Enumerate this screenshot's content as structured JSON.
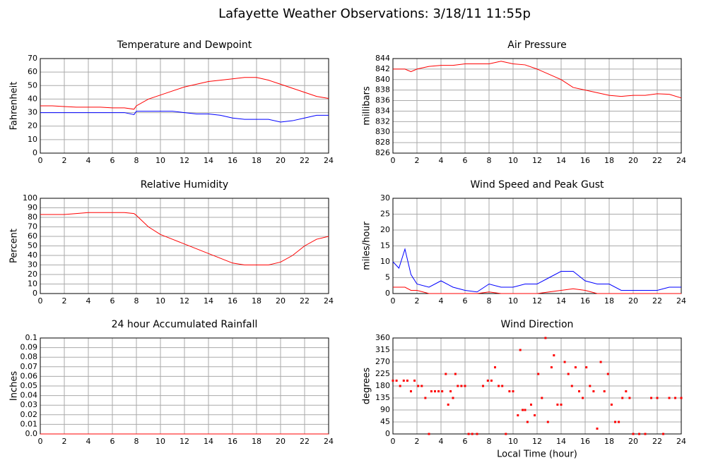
{
  "title": "Lafayette Weather Observations: 3/18/11 11:55p",
  "chart_data": [
    {
      "type": "line",
      "title": "Temperature and Dewpoint",
      "ylabel": "Fahrenheit",
      "x": [
        0,
        1,
        2,
        3,
        4,
        5,
        6,
        7,
        7.8,
        8,
        9,
        10,
        11,
        12,
        13,
        14,
        15,
        16,
        17,
        18,
        19,
        20,
        21,
        22,
        23,
        24
      ],
      "series": [
        {
          "color": "#ff0000",
          "values": [
            35,
            35,
            34.5,
            34,
            34,
            34,
            33.5,
            33.5,
            32.5,
            35,
            40,
            43,
            46,
            49,
            51,
            53,
            54,
            55,
            56,
            56,
            54,
            51,
            48,
            45,
            42,
            40.5
          ]
        },
        {
          "color": "#0000ff",
          "values": [
            30,
            30,
            30,
            30,
            30,
            30,
            30,
            30,
            28.5,
            31,
            31,
            31,
            31,
            30,
            29,
            29,
            28,
            26,
            25,
            25,
            25,
            23,
            24,
            26,
            28,
            28
          ]
        }
      ],
      "xlim": [
        0,
        24
      ],
      "xticks": [
        0,
        2,
        4,
        6,
        8,
        10,
        12,
        14,
        16,
        18,
        20,
        22,
        24
      ],
      "ylim": [
        0,
        70
      ],
      "yticks": [
        0,
        10,
        20,
        30,
        40,
        50,
        60,
        70
      ],
      "grid": true
    },
    {
      "type": "line",
      "title": "Air Pressure",
      "ylabel": "millibars",
      "x": [
        0,
        1,
        1.5,
        2,
        3,
        4,
        5,
        6,
        7,
        8,
        9,
        10,
        11,
        12,
        13,
        14,
        15,
        16,
        17,
        18,
        19,
        20,
        21,
        22,
        23,
        24
      ],
      "series": [
        {
          "color": "#ff0000",
          "values": [
            842,
            842,
            841.5,
            842,
            842.5,
            842.7,
            842.7,
            843,
            843,
            843,
            843.5,
            843,
            842.8,
            842,
            841,
            840,
            838.5,
            838,
            837.5,
            837,
            836.8,
            837,
            837,
            837.3,
            837.2,
            836.5
          ]
        }
      ],
      "xlim": [
        0,
        24
      ],
      "xticks": [
        0,
        2,
        4,
        6,
        8,
        10,
        12,
        14,
        16,
        18,
        20,
        22,
        24
      ],
      "ylim": [
        826,
        844
      ],
      "yticks": [
        826,
        828,
        830,
        832,
        834,
        836,
        838,
        840,
        842,
        844
      ],
      "grid": true
    },
    {
      "type": "line",
      "title": "Relative Humidity",
      "ylabel": "Percent",
      "x": [
        0,
        1,
        2,
        3,
        4,
        5,
        6,
        7,
        7.8,
        8,
        9,
        10,
        11,
        12,
        13,
        14,
        15,
        16,
        17,
        18,
        19,
        20,
        21,
        22,
        23,
        24
      ],
      "series": [
        {
          "color": "#ff0000",
          "values": [
            83,
            83,
            83,
            84,
            85,
            85,
            85,
            85,
            84,
            82,
            70,
            62,
            57,
            52,
            47,
            42,
            37,
            32,
            30,
            30,
            30,
            33,
            40,
            50,
            57,
            60
          ]
        }
      ],
      "xlim": [
        0,
        24
      ],
      "xticks": [
        0,
        2,
        4,
        6,
        8,
        10,
        12,
        14,
        16,
        18,
        20,
        22,
        24
      ],
      "ylim": [
        0,
        100
      ],
      "yticks": [
        0,
        10,
        20,
        30,
        40,
        50,
        60,
        70,
        80,
        90,
        100
      ],
      "grid": true
    },
    {
      "type": "line",
      "title": "Wind Speed and Peak Gust",
      "ylabel": "miles/hour",
      "x": [
        0,
        0.5,
        1,
        1.5,
        2,
        3,
        4,
        5,
        6,
        7,
        8,
        9,
        10,
        11,
        12,
        13,
        14,
        15,
        16,
        17,
        18,
        19,
        20,
        21,
        22,
        23,
        24
      ],
      "series": [
        {
          "color": "#0000ff",
          "values": [
            10,
            8,
            14,
            6,
            3,
            2,
            4,
            2,
            1,
            0.5,
            3,
            2,
            2,
            3,
            3,
            5,
            7,
            7,
            4,
            3,
            3,
            1,
            1,
            1,
            1,
            2,
            2
          ]
        },
        {
          "color": "#ff0000",
          "values": [
            2,
            2,
            2,
            1,
            1,
            0,
            0,
            0,
            0,
            0,
            0.5,
            0,
            0,
            0,
            0,
            0.5,
            1,
            1.5,
            1,
            0,
            0,
            0,
            0,
            0,
            0,
            0,
            0
          ]
        }
      ],
      "xlim": [
        0,
        24
      ],
      "xticks": [
        0,
        2,
        4,
        6,
        8,
        10,
        12,
        14,
        16,
        18,
        20,
        22,
        24
      ],
      "ylim": [
        0,
        30
      ],
      "yticks": [
        0,
        5,
        10,
        15,
        20,
        25,
        30
      ],
      "grid": true
    },
    {
      "type": "line",
      "title": "24 hour Accumulated Rainfall",
      "ylabel": "Inches",
      "x": [
        0,
        24
      ],
      "series": [
        {
          "color": "#ff0000",
          "values": [
            0,
            0
          ]
        }
      ],
      "xlim": [
        0,
        24
      ],
      "xticks": [
        0,
        2,
        4,
        6,
        8,
        10,
        12,
        14,
        16,
        18,
        20,
        22,
        24
      ],
      "ylim": [
        0,
        0.1
      ],
      "yticks": [
        {
          "value": 0,
          "label": "0.0"
        },
        0.01,
        0.02,
        0.03,
        0.04,
        0.05,
        0.06,
        0.07,
        0.08,
        0.09,
        0.1
      ],
      "grid": true
    },
    {
      "type": "scatter",
      "title": "Wind Direction",
      "ylabel": "degrees",
      "xlabel": "Local Time (hour)",
      "color": "#ff0000",
      "x": [
        0,
        0.3,
        0.6,
        0.9,
        1.2,
        1.5,
        1.8,
        2.1,
        2.4,
        2.7,
        3.0,
        3.2,
        3.5,
        3.8,
        4.1,
        4.4,
        4.6,
        4.8,
        5.0,
        5.2,
        5.4,
        5.7,
        6.0,
        6.3,
        6.6,
        7.0,
        7.5,
        7.9,
        8.2,
        8.5,
        8.8,
        9.1,
        9.4,
        9.7,
        10.0,
        10.4,
        10.6,
        10.8,
        11.0,
        11.2,
        11.5,
        11.8,
        12.1,
        12.4,
        12.7,
        12.9,
        13.2,
        13.4,
        13.7,
        14.0,
        14.3,
        14.6,
        14.9,
        15.2,
        15.5,
        15.8,
        16.1,
        16.4,
        16.7,
        17.0,
        17.3,
        17.6,
        17.9,
        18.2,
        18.5,
        18.8,
        19.1,
        19.4,
        19.7,
        20.0,
        20.5,
        21.0,
        21.5,
        22.0,
        22.5,
        23.0,
        23.5,
        24.0
      ],
      "values": [
        200,
        200,
        180,
        200,
        200,
        160,
        200,
        180,
        180,
        135,
        0,
        160,
        160,
        160,
        160,
        225,
        110,
        160,
        135,
        225,
        180,
        180,
        180,
        0,
        0,
        0,
        180,
        200,
        200,
        250,
        180,
        180,
        0,
        160,
        160,
        70,
        315,
        90,
        90,
        45,
        110,
        70,
        225,
        135,
        360,
        45,
        250,
        295,
        110,
        110,
        270,
        225,
        180,
        250,
        160,
        135,
        250,
        180,
        160,
        20,
        270,
        160,
        225,
        110,
        45,
        45,
        135,
        160,
        135,
        0,
        0,
        0,
        135,
        135,
        0,
        135,
        135,
        135
      ],
      "xlim": [
        0,
        24
      ],
      "xticks": [
        0,
        2,
        4,
        6,
        8,
        10,
        12,
        14,
        16,
        18,
        20,
        22,
        24
      ],
      "ylim": [
        0,
        360
      ],
      "yticks": [
        0,
        45,
        90,
        135,
        180,
        225,
        270,
        315,
        360
      ],
      "grid": true
    }
  ]
}
